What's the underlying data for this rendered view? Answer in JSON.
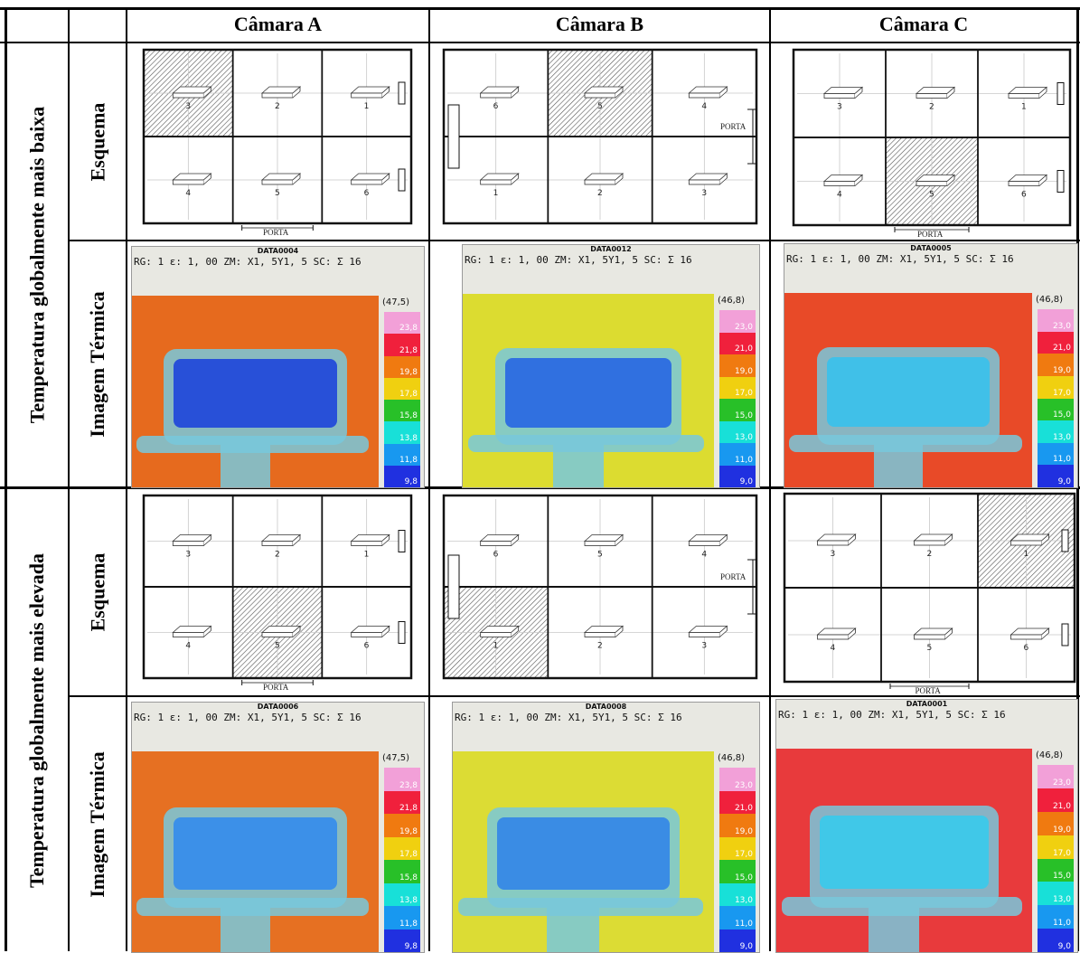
{
  "header": {
    "col_a": "Câmara A",
    "col_b": "Câmara B",
    "col_c": "Câmara C"
  },
  "groups": [
    {
      "label": "Temperatura globalmente mais baixa"
    },
    {
      "label": "Temperatura globalmente mais elevada"
    }
  ],
  "row_labels": {
    "scheme": "Esquema",
    "thermal": "Imagem Térmica"
  },
  "porta_label": "PORTA",
  "thermal_info": "RG: 1  ε: 1, 00  ZM: X1, 5Y1, 5  SC: Σ 16",
  "thermal": [
    {
      "id": "DATA0004",
      "max": "(47,5)",
      "scale": [
        "23,8",
        "21,8",
        "19,8",
        "17,8",
        "15,8",
        "13,8",
        "11,8",
        "9,8"
      ],
      "bg": "#e66a1e",
      "rect": "#2850d8"
    },
    {
      "id": "DATA0012",
      "max": "(46,8)",
      "scale": [
        "23,0",
        "21,0",
        "19,0",
        "17,0",
        "15,0",
        "13,0",
        "11,0",
        "9,0"
      ],
      "bg": "#dcdc30",
      "rect": "#3070e0"
    },
    {
      "id": "DATA0005",
      "max": "(46,8)",
      "scale": [
        "23,0",
        "21,0",
        "19,0",
        "17,0",
        "15,0",
        "13,0",
        "11,0",
        "9,0"
      ],
      "bg": "#e84a28",
      "rect": "#40c0e8"
    },
    {
      "id": "DATA0006",
      "max": "(47,5)",
      "scale": [
        "23,8",
        "21,8",
        "19,8",
        "17,8",
        "15,8",
        "13,8",
        "11,8",
        "9,8"
      ],
      "bg": "#e67022",
      "rect": "#3c90e8"
    },
    {
      "id": "DATA0008",
      "max": "(46,8)",
      "scale": [
        "23,0",
        "21,0",
        "19,0",
        "17,0",
        "15,0",
        "13,0",
        "11,0",
        "9,0"
      ],
      "bg": "#dcdc34",
      "rect": "#3a8ce4"
    },
    {
      "id": "DATA0001",
      "max": "(46,8)",
      "scale": [
        "23,0",
        "21,0",
        "19,0",
        "17,0",
        "15,0",
        "13,0",
        "11,0",
        "9,0"
      ],
      "bg": "#e83a3c",
      "rect": "#40c8e8"
    }
  ],
  "schemes": [
    {
      "layout": "abc",
      "numbers": [
        "3",
        "2",
        "1",
        "4",
        "5",
        "6"
      ],
      "hatched": 0
    },
    {
      "layout": "b",
      "numbers": [
        "6",
        "5",
        "4",
        "1",
        "2",
        "3"
      ],
      "hatched": 1
    },
    {
      "layout": "abc",
      "numbers": [
        "3",
        "2",
        "1",
        "4",
        "5",
        "6"
      ],
      "hatched": 4
    },
    {
      "layout": "abc",
      "numbers": [
        "3",
        "2",
        "1",
        "4",
        "5",
        "6"
      ],
      "hatched": 4
    },
    {
      "layout": "b",
      "numbers": [
        "6",
        "5",
        "4",
        "1",
        "2",
        "3"
      ],
      "hatched": 3
    },
    {
      "layout": "abc",
      "numbers": [
        "3",
        "2",
        "1",
        "4",
        "5",
        "6"
      ],
      "hatched": 2
    }
  ],
  "scale_colors": [
    "#f2a0d8",
    "#f0203c",
    "#f07a10",
    "#f0d010",
    "#28c028",
    "#18e0d8",
    "#1898f0",
    "#2030e0"
  ]
}
